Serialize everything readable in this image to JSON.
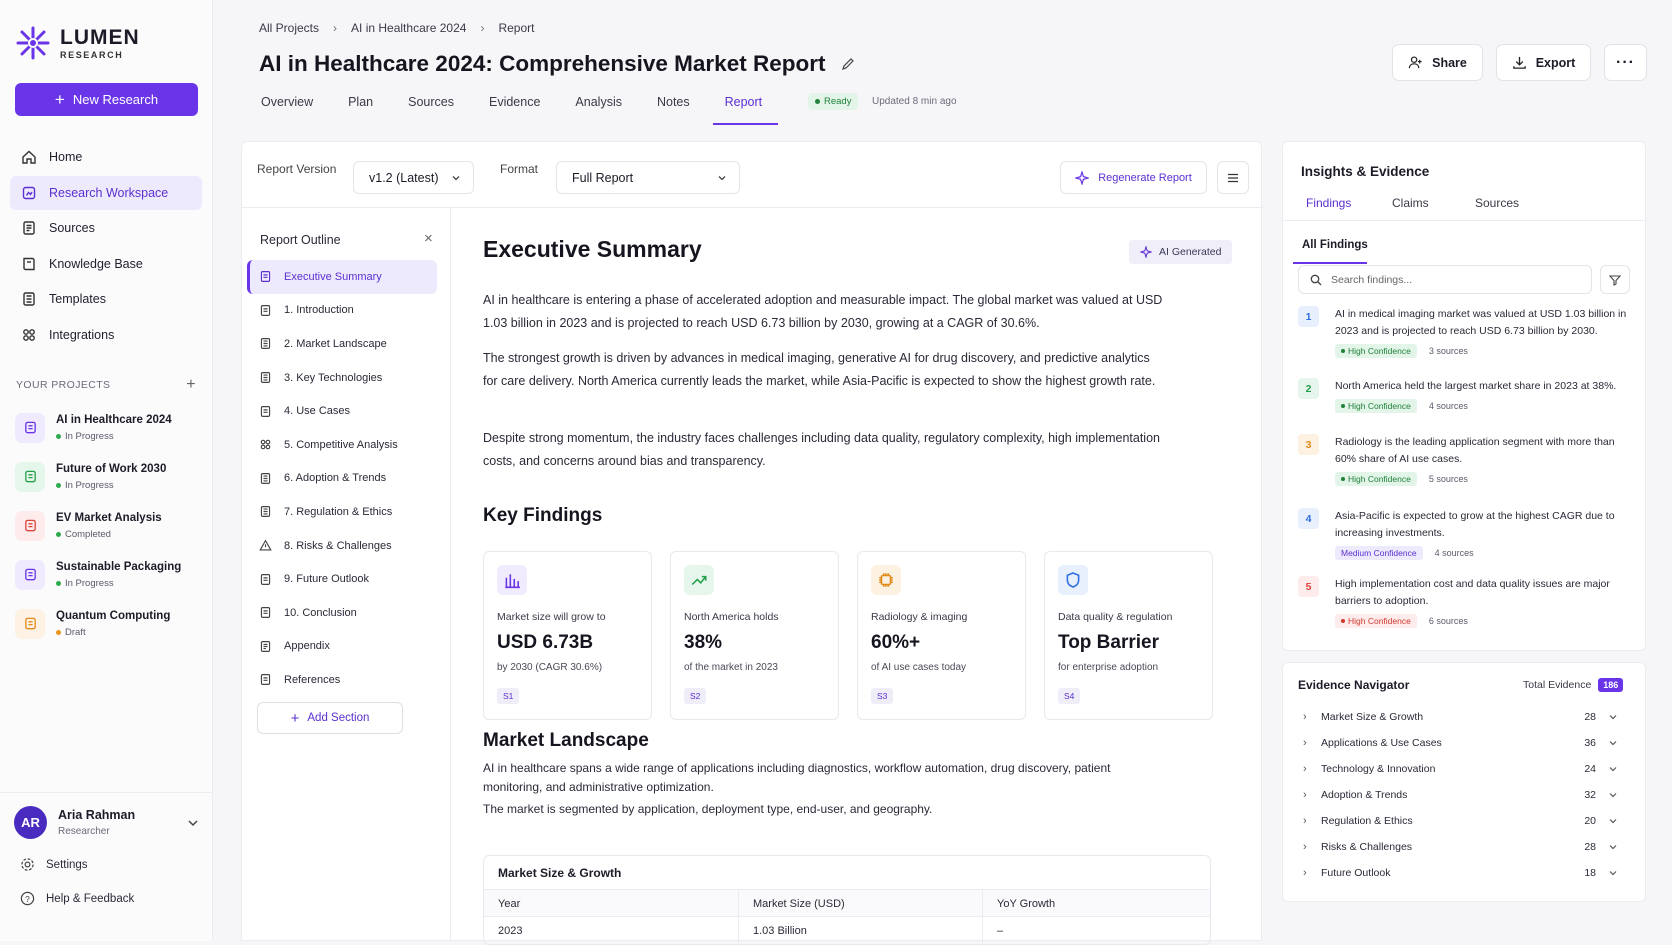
{
  "brand": {
    "name": "LUMEN",
    "sub": "RESEARCH",
    "accent": "#6a35e8"
  },
  "sidebar": {
    "new_research": "New Research",
    "nav": [
      {
        "label": "Home",
        "icon": "home-icon"
      },
      {
        "label": "Research Workspace",
        "icon": "workspace-icon",
        "active": true
      },
      {
        "label": "Sources",
        "icon": "sources-icon"
      },
      {
        "label": "Knowledge Base",
        "icon": "book-icon"
      },
      {
        "label": "Templates",
        "icon": "template-icon"
      },
      {
        "label": "Integrations",
        "icon": "integrations-icon"
      }
    ],
    "projects_heading": "YOUR PROJECTS",
    "projects": [
      {
        "name": "AI in Healthcare 2024",
        "status": "In Progress",
        "color": "#6a35e8",
        "bg": "#efeafd",
        "dot": "#2eaa4e"
      },
      {
        "name": "Future of Work 2030",
        "status": "In Progress",
        "color": "#25a04a",
        "bg": "#e5f6ea",
        "dot": "#2eaa4e"
      },
      {
        "name": "EV Market Analysis",
        "status": "Completed",
        "color": "#e0453a",
        "bg": "#fdeceb",
        "dot": "#2eaa4e"
      },
      {
        "name": "Sustainable Packaging",
        "status": "In Progress",
        "color": "#6a35e8",
        "bg": "#efeafd",
        "dot": "#2eaa4e"
      },
      {
        "name": "Quantum Computing",
        "status": "Draft",
        "color": "#e48a1a",
        "bg": "#fdf2e3",
        "dot": "#e8961e"
      }
    ],
    "user": {
      "initials": "AR",
      "name": "Aria Rahman",
      "role": "Researcher"
    },
    "settings": "Settings",
    "help": "Help & Feedback"
  },
  "header": {
    "breadcrumb": [
      "All Projects",
      "AI in Healthcare 2024",
      "Report"
    ],
    "title": "AI in Healthcare 2024: Comprehensive Market Report",
    "share": "Share",
    "export": "Export",
    "tabs": [
      "Overview",
      "Plan",
      "Sources",
      "Evidence",
      "Analysis",
      "Notes",
      "Report"
    ],
    "active_tab": "Report",
    "status": "Ready",
    "updated": "Updated 8 min ago"
  },
  "toolbar": {
    "version_label": "Report Version",
    "version_value": "v1.2 (Latest)",
    "format_label": "Format",
    "format_value": "Full Report",
    "regenerate": "Regenerate Report"
  },
  "outline": {
    "title": "Report Outline",
    "items": [
      "Executive Summary",
      "1. Introduction",
      "2. Market Landscape",
      "3. Key Technologies",
      "4. Use Cases",
      "5. Competitive Analysis",
      "6. Adoption & Trends",
      "7. Regulation & Ethics",
      "8. Risks & Challenges",
      "9. Future Outlook",
      "10. Conclusion",
      "Appendix",
      "References"
    ],
    "add_section": "Add Section"
  },
  "report": {
    "exec_title": "Executive Summary",
    "ai_generated": "AI Generated",
    "paragraphs": [
      "AI in healthcare is entering a phase of accelerated adoption and measurable impact. The global market was valued at USD 1.03 billion in 2023 and is projected to reach USD 6.73 billion by 2030, growing at a CAGR of 30.6%.",
      "The strongest growth is driven by advances in medical imaging, generative AI for drug discovery, and predictive analytics for care delivery. North America currently leads the market, while Asia-Pacific is expected to show the highest growth rate.",
      "Despite strong momentum, the industry faces challenges including data quality, regulatory complexity, high implementation costs, and concerns around bias and transparency."
    ],
    "key_findings_title": "Key Findings",
    "cards": [
      {
        "label": "Market size will grow to",
        "value": "USD 6.73B",
        "sub": "by 2030 (CAGR 30.6%)",
        "tag": "S1",
        "icon": "bar-chart-icon",
        "color": "#6a35e8",
        "bg": "#f0ebfd"
      },
      {
        "label": "North America holds",
        "value": "38%",
        "sub": "of the market in 2023",
        "tag": "S2",
        "icon": "trend-up-icon",
        "color": "#22a04a",
        "bg": "#e7f6ec"
      },
      {
        "label": "Radiology & imaging",
        "value": "60%+",
        "sub": "of AI use cases today",
        "tag": "S3",
        "icon": "chip-icon",
        "color": "#e08a1a",
        "bg": "#fdf1e1"
      },
      {
        "label": "Data quality & regulation",
        "value": "Top Barrier",
        "sub": "for enterprise adoption",
        "tag": "S4",
        "icon": "shield-icon",
        "color": "#2f6fe0",
        "bg": "#e9f0fd"
      }
    ],
    "landscape_title": "Market Landscape",
    "landscape_p1": "AI in healthcare spans a wide range of applications including diagnostics, workflow automation, drug discovery, patient monitoring, and administrative optimization.",
    "landscape_p2": "The market is segmented by application, deployment type, end-user, and geography.",
    "table": {
      "title": "Market Size & Growth",
      "headers": [
        "Year",
        "Market Size (USD)",
        "YoY Growth"
      ],
      "rows": [
        [
          "2023",
          "1.03 Billion",
          "–"
        ]
      ]
    }
  },
  "insights": {
    "title": "Insights & Evidence",
    "tabs": [
      "Findings",
      "Claims",
      "Sources"
    ],
    "all_findings": "All Findings",
    "search_placeholder": "Search findings...",
    "findings": [
      {
        "n": "1",
        "text": "AI in medical imaging market was valued at USD 1.03 billion in 2023 and is projected to reach USD 6.73 billion by 2030.",
        "conf": "High Confidence",
        "sources": "3 sources",
        "level": "high",
        "color": "#2f6fe0",
        "bg": "#e9f0fd"
      },
      {
        "n": "2",
        "text": "North America held the largest market share in 2023 at 38%.",
        "conf": "High Confidence",
        "sources": "4 sources",
        "level": "high",
        "color": "#22a04a",
        "bg": "#e7f6ec"
      },
      {
        "n": "3",
        "text": "Radiology is the leading application segment with more than 60% share of AI use cases.",
        "conf": "High Confidence",
        "sources": "5 sources",
        "level": "high",
        "color": "#e08a1a",
        "bg": "#fdf1e1"
      },
      {
        "n": "4",
        "text": "Asia-Pacific is expected to grow at the highest CAGR due to increasing investments.",
        "conf": "Medium Confidence",
        "sources": "4 sources",
        "level": "medium",
        "color": "#2f6fe0",
        "bg": "#e9f0fd"
      },
      {
        "n": "5",
        "text": "High implementation cost and data quality issues are major barriers to adoption.",
        "conf": "High Confidence",
        "sources": "6 sources",
        "level": "red",
        "color": "#e0453a",
        "bg": "#fdeceb"
      }
    ]
  },
  "evidence": {
    "title": "Evidence Navigator",
    "total_label": "Total Evidence",
    "total": "186",
    "rows": [
      {
        "label": "Market Size & Growth",
        "count": "28"
      },
      {
        "label": "Applications & Use Cases",
        "count": "36"
      },
      {
        "label": "Technology & Innovation",
        "count": "24"
      },
      {
        "label": "Adoption & Trends",
        "count": "32"
      },
      {
        "label": "Regulation & Ethics",
        "count": "20"
      },
      {
        "label": "Risks & Challenges",
        "count": "28"
      },
      {
        "label": "Future Outlook",
        "count": "18"
      }
    ]
  }
}
